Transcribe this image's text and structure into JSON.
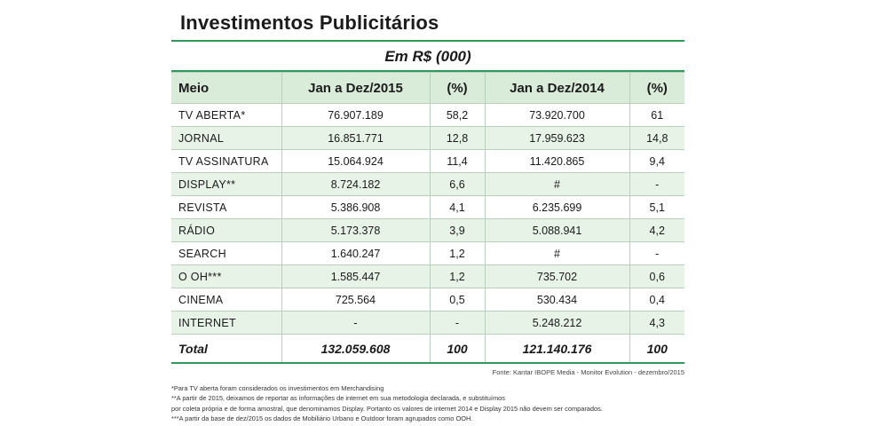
{
  "title": "Investimentos Publicitários",
  "subtitle": "Em R$ (000)",
  "table": {
    "headers": [
      "Meio",
      "Jan a Dez/2015",
      "(%)",
      "Jan a Dez/2014",
      "(%)"
    ],
    "rows": [
      {
        "meio": "TV ABERTA*",
        "v2015": "76.907.189",
        "p2015": "58,2",
        "v2014": "73.920.700",
        "p2014": "61"
      },
      {
        "meio": "JORNAL",
        "v2015": "16.851.771",
        "p2015": "12,8",
        "v2014": "17.959.623",
        "p2014": "14,8"
      },
      {
        "meio": "TV ASSINATURA",
        "v2015": "15.064.924",
        "p2015": "11,4",
        "v2014": "11.420.865",
        "p2014": "9,4"
      },
      {
        "meio": "DISPLAY**",
        "v2015": "8.724.182",
        "p2015": "6,6",
        "v2014": "#",
        "p2014": "-"
      },
      {
        "meio": "REVISTA",
        "v2015": "5.386.908",
        "p2015": "4,1",
        "v2014": "6.235.699",
        "p2014": "5,1"
      },
      {
        "meio": "RÁDIO",
        "v2015": "5.173.378",
        "p2015": "3,9",
        "v2014": "5.088.941",
        "p2014": "4,2"
      },
      {
        "meio": "SEARCH",
        "v2015": "1.640.247",
        "p2015": "1,2",
        "v2014": "#",
        "p2014": "-"
      },
      {
        "meio": "O OH***",
        "v2015": "1.585.447",
        "p2015": "1,2",
        "v2014": "735.702",
        "p2014": "0,6"
      },
      {
        "meio": "CINEMA",
        "v2015": "725.564",
        "p2015": "0,5",
        "v2014": "530.434",
        "p2014": "0,4"
      },
      {
        "meio": "INTERNET",
        "v2015": "-",
        "p2015": "-",
        "v2014": "5.248.212",
        "p2014": "4,3"
      }
    ],
    "total": {
      "meio": "Total",
      "v2015": "132.059.608",
      "p2015": "100",
      "v2014": "121.140.176",
      "p2014": "100"
    }
  },
  "source": "Fonte: Kantar IBOPE Media - Monitor Evolution - dezembro/2015",
  "notes": [
    "*Para TV aberta foram considerados os investimentos em Merchandising",
    "**A partir de 2015, deixamos de reportar as informações de internet em sua metodologia declarada, e substituímos",
    "por coleta própria e de forma amostral, que denominamos Display. Portanto os valores de internet 2014 e Display 2015 não devem ser comparados.",
    "***A partir da base de dez/2015 os dados de Mobiliário Urbano e Outdoor foram agrupados como OOH."
  ],
  "colors": {
    "accent": "#2f9a5a",
    "header_bg": "#d9ecd9",
    "row_alt": "#e8f3e8"
  }
}
